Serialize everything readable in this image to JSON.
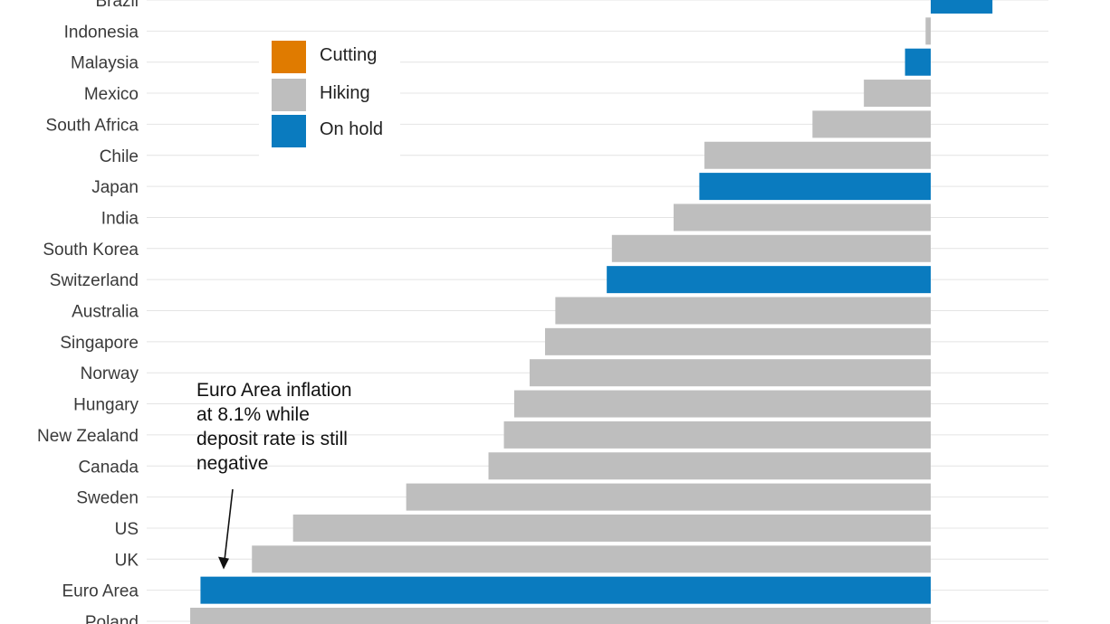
{
  "chart_data": {
    "type": "bar",
    "orientation": "horizontal",
    "baseline": 0,
    "xlim": [
      -15,
      2
    ],
    "grid": true,
    "legend_position": "top-left",
    "colors": {
      "Cutting": "#e07b00",
      "Hiking": "#bebebe",
      "On hold": "#0a7bbf"
    },
    "legend": [
      {
        "label": "Cutting",
        "color": "#e07b00"
      },
      {
        "label": "Hiking",
        "color": "#bebebe"
      },
      {
        "label": "On hold",
        "color": "#0a7bbf"
      }
    ],
    "categories": [
      "Brazil",
      "Indonesia",
      "Malaysia",
      "Mexico",
      "South Africa",
      "Chile",
      "Japan",
      "India",
      "South Korea",
      "Switzerland",
      "Australia",
      "Singapore",
      "Norway",
      "Hungary",
      "New Zealand",
      "Canada",
      "Sweden",
      "US",
      "UK",
      "Euro Area",
      "Poland"
    ],
    "values": [
      1.2,
      -0.1,
      -0.5,
      -1.3,
      -2.3,
      -4.4,
      -4.5,
      -5.0,
      -6.2,
      -6.3,
      -7.3,
      -7.5,
      -7.8,
      -8.1,
      -8.3,
      -8.6,
      -10.2,
      -12.4,
      -13.2,
      -14.2,
      -14.4
    ],
    "status": [
      "On hold",
      "Hiking",
      "On hold",
      "Hiking",
      "Hiking",
      "Hiking",
      "On hold",
      "Hiking",
      "Hiking",
      "On hold",
      "Hiking",
      "Hiking",
      "Hiking",
      "Hiking",
      "Hiking",
      "Hiking",
      "Hiking",
      "Hiking",
      "Hiking",
      "On hold",
      "Hiking"
    ],
    "annotation": {
      "lines": [
        "Euro Area inflation",
        "at 8.1% while",
        "deposit rate is still",
        "negative"
      ],
      "target": "Euro Area"
    }
  }
}
